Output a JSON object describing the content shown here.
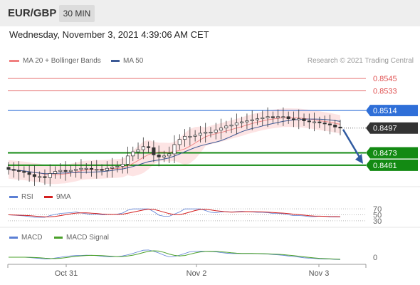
{
  "header": {
    "pair": "EUR/GBP",
    "timeframe": "30 MIN"
  },
  "date_text": "Wednesday, November 3, 2021 4:39:06 AM CET",
  "copyright": "Research © 2021 Trading Central",
  "colors": {
    "candle_up": "#ffffff",
    "candle_down": "#333333",
    "bollinger": "#f08080",
    "bollinger_fill": "#fde4e4",
    "ma50": "#3c5a96",
    "resistance": "#e05252",
    "pivot": "#2f6fd8",
    "support": "#138a13",
    "price": "#333333",
    "arrow": "#2f5aa0",
    "rsi": "#5b7fd4",
    "rsi_ma": "#d42020",
    "macd": "#5b7fd4",
    "macd_signal": "#4aa02a"
  },
  "chart_data": [
    {
      "type": "candlestick",
      "legend": [
        {
          "name": "MA 20 + Bollinger Bands"
        },
        {
          "name": "MA 50"
        }
      ],
      "ylim": [
        0.8443,
        0.8552
      ],
      "x_ticks": [
        "Oct 31",
        "Nov 2",
        "Nov 3"
      ],
      "levels": [
        {
          "value": 0.8545,
          "label": "0.8545",
          "kind": "resistance"
        },
        {
          "value": 0.8533,
          "label": "0.8533",
          "kind": "resistance"
        },
        {
          "value": 0.8514,
          "label": "0.8514",
          "kind": "pivot"
        },
        {
          "value": 0.8497,
          "label": "0.8497",
          "kind": "price"
        },
        {
          "value": 0.8473,
          "label": "0.8473",
          "kind": "support"
        },
        {
          "value": 0.8461,
          "label": "0.8461",
          "kind": "support"
        }
      ],
      "close_series": [
        0.8457,
        0.8456,
        0.8455,
        0.8454,
        0.8452,
        0.845,
        0.845,
        0.8449,
        0.8453,
        0.8455,
        0.8456,
        0.8455,
        0.8456,
        0.8457,
        0.8458,
        0.8458,
        0.8457,
        0.8457,
        0.8456,
        0.8458,
        0.8459,
        0.846,
        0.8462,
        0.847,
        0.8474,
        0.8476,
        0.8479,
        0.8478,
        0.8471,
        0.8469,
        0.847,
        0.8472,
        0.8481,
        0.8486,
        0.8489,
        0.8489,
        0.849,
        0.8492,
        0.8493,
        0.8493,
        0.8495,
        0.8497,
        0.8499,
        0.85,
        0.8502,
        0.8503,
        0.8504,
        0.8505,
        0.8506,
        0.8507,
        0.8508,
        0.8507,
        0.8508,
        0.8508,
        0.8506,
        0.8505,
        0.8506,
        0.8504,
        0.8503,
        0.8503,
        0.8502,
        0.8501,
        0.85,
        0.8498,
        0.8497
      ]
    },
    {
      "type": "line",
      "series": [
        {
          "name": "RSI"
        },
        {
          "name": "9MA"
        }
      ],
      "y_ticks": [
        "70",
        "50",
        "30"
      ]
    },
    {
      "type": "line",
      "series": [
        {
          "name": "MACD"
        },
        {
          "name": "MACD Signal"
        }
      ],
      "y_ticks": [
        "0"
      ]
    }
  ]
}
